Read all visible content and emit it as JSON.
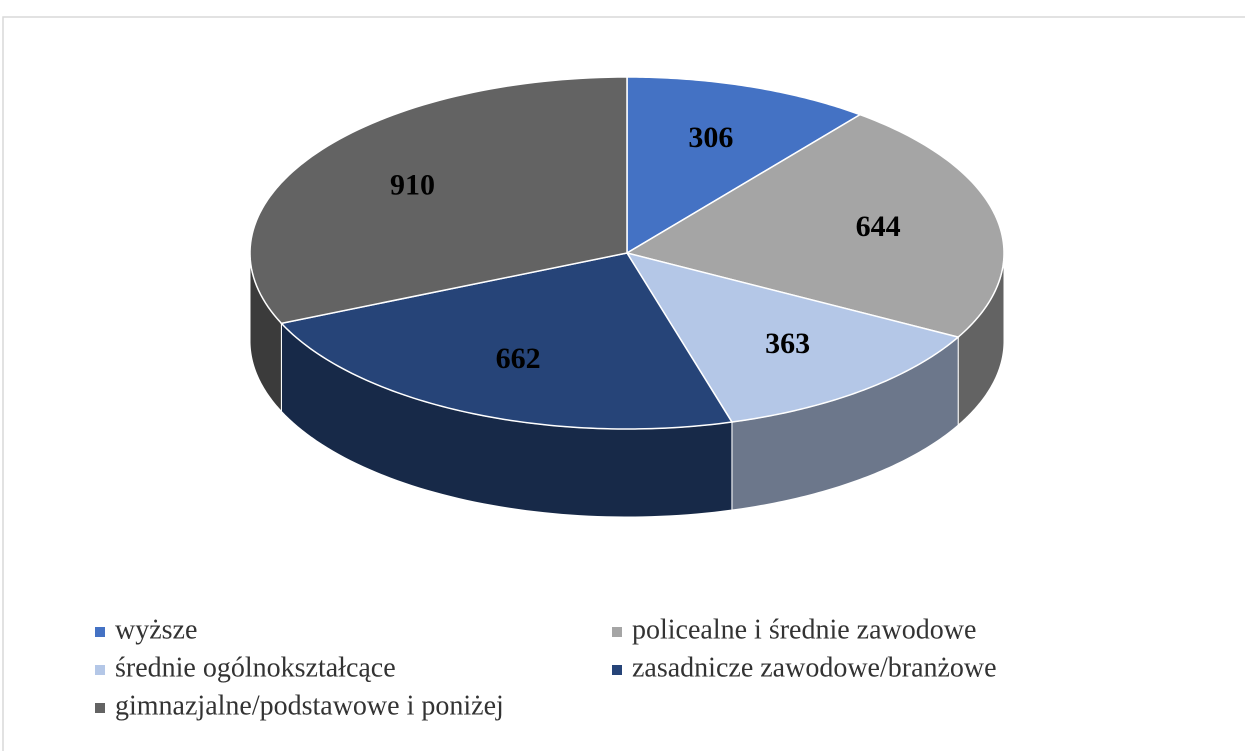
{
  "chart_data": {
    "type": "pie",
    "categories": [
      "wyższe",
      "policealne i średnie zawodowe",
      "średnie ogólnokształcące",
      "zasadnicze zawodowe/branżowe",
      "gimnazjalne/podstawowe i poniżej"
    ],
    "values": [
      306,
      644,
      363,
      662,
      910
    ],
    "colors": [
      "#4472c4",
      "#a5a5a5",
      "#b4c7e7",
      "#264478",
      "#636363"
    ],
    "legend": "bottom"
  }
}
